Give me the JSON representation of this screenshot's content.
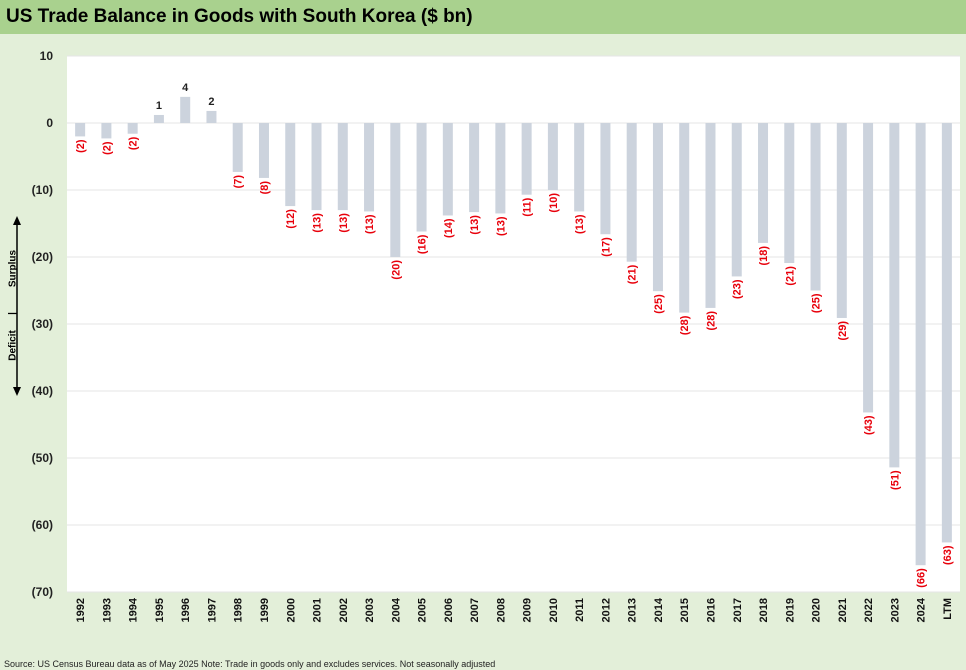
{
  "chart_data": {
    "type": "bar",
    "title": "US Trade Balance in Goods with South Korea ($ bn)",
    "xlabel": "",
    "ylabel": "",
    "ylim": [
      -70,
      10
    ],
    "yticks": [
      10,
      0,
      -10,
      -20,
      -30,
      -40,
      -50,
      -60,
      -70
    ],
    "ytick_labels": [
      "10",
      "0",
      "(10)",
      "(20)",
      "(30)",
      "(40)",
      "(50)",
      "(60)",
      "(70)"
    ],
    "categories": [
      "1992",
      "1993",
      "1994",
      "1995",
      "1996",
      "1997",
      "1998",
      "1999",
      "2000",
      "2001",
      "2002",
      "2003",
      "2004",
      "2005",
      "2006",
      "2007",
      "2008",
      "2009",
      "2010",
      "2011",
      "2012",
      "2013",
      "2014",
      "2015",
      "2016",
      "2017",
      "2018",
      "2019",
      "2020",
      "2021",
      "2022",
      "2023",
      "2024",
      "LTM"
    ],
    "values": [
      -2.0,
      -2.3,
      -1.6,
      1.2,
      3.9,
      1.8,
      -7.3,
      -8.2,
      -12.4,
      -13.0,
      -13.0,
      -13.2,
      -20.0,
      -16.2,
      -13.8,
      -13.3,
      -13.5,
      -10.7,
      -10.0,
      -13.2,
      -16.6,
      -20.7,
      -25.1,
      -28.3,
      -27.6,
      -22.9,
      -17.9,
      -20.9,
      -25.0,
      -29.1,
      -43.2,
      -51.4,
      -66.0,
      -62.6
    ],
    "data_labels": [
      "(2)",
      "(2)",
      "(2)",
      "1",
      "4",
      "2",
      "(7)",
      "(8)",
      "(12)",
      "(13)",
      "(13)",
      "(13)",
      "(20)",
      "(16)",
      "(14)",
      "(13)",
      "(13)",
      "(11)",
      "(10)",
      "(13)",
      "(17)",
      "(21)",
      "(25)",
      "(28)",
      "(28)",
      "(23)",
      "(18)",
      "(21)",
      "(25)",
      "(29)",
      "(43)",
      "(51)",
      "(66)",
      "(63)"
    ],
    "colors": {
      "bar": "#ccd3dd",
      "negative_label": "#e8000b",
      "positive_label": "#222222",
      "grid": "#e6e6e6"
    },
    "side_annotation": {
      "surplus": "Surplus",
      "separator": "|",
      "deficit": "Deficit"
    },
    "source": "Source: US Census Bureau data as of May 2025 Note: Trade in goods only and excludes services. Not seasonally adjusted"
  }
}
